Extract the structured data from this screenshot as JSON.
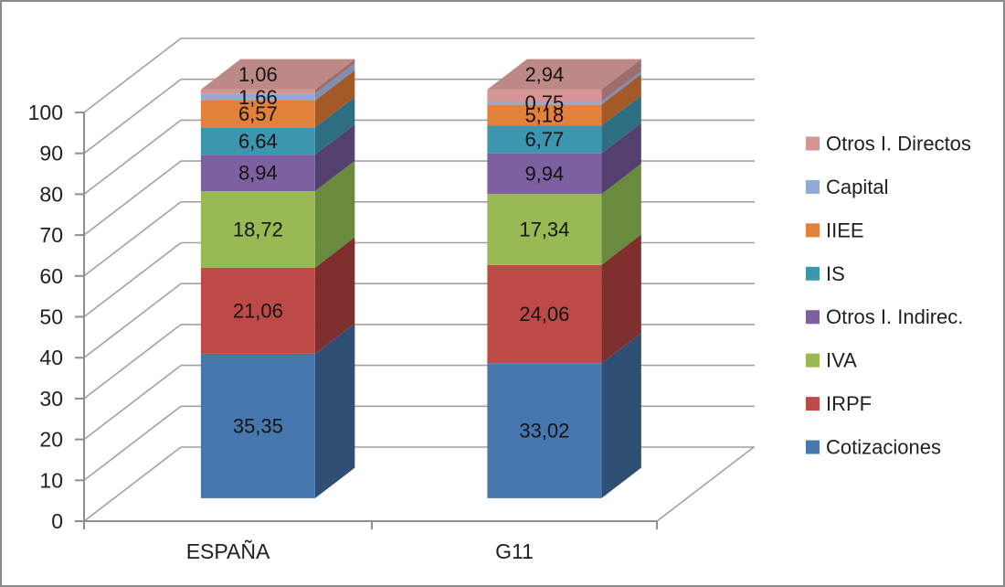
{
  "chart_data": {
    "type": "bar",
    "variant": "3d-stacked-column",
    "title": "",
    "categories": [
      "ESPAÑA",
      "G11"
    ],
    "series": [
      {
        "name": "Cotizaciones",
        "values": [
          35.35,
          33.02
        ],
        "labels": [
          "35,35",
          "33,02"
        ],
        "color": "#4677AE",
        "side": "#2E4E74"
      },
      {
        "name": "IRPF",
        "values": [
          21.06,
          24.06
        ],
        "labels": [
          "21,06",
          "24,06"
        ],
        "color": "#BE4A47",
        "side": "#7E2F2D"
      },
      {
        "name": "IVA",
        "values": [
          18.72,
          17.34
        ],
        "labels": [
          "18,72",
          "17,34"
        ],
        "color": "#98B954",
        "side": "#6A8B3E"
      },
      {
        "name": "Otros I. Indirec.",
        "values": [
          8.94,
          9.94
        ],
        "labels": [
          "8,94",
          "9,94"
        ],
        "color": "#7D60A0",
        "side": "#54406F"
      },
      {
        "name": "IS",
        "values": [
          6.64,
          6.77
        ],
        "labels": [
          "6,64",
          "6,77"
        ],
        "color": "#3D96AF",
        "side": "#2E6E82"
      },
      {
        "name": "IIEE",
        "values": [
          6.57,
          5.18
        ],
        "labels": [
          "6,57",
          "5,18"
        ],
        "color": "#E2813C",
        "side": "#A45A26"
      },
      {
        "name": "Capital",
        "values": [
          1.66,
          0.75
        ],
        "labels": [
          "1,66",
          "0,75"
        ],
        "color": "#93AAD4",
        "side": "#7C8FB5"
      },
      {
        "name": "Otros I. Directos",
        "values": [
          1.06,
          2.94
        ],
        "labels": [
          "1,06",
          "2,94"
        ],
        "color": "#D49593",
        "side": "#9E6E6D",
        "top": "#BC8987"
      }
    ],
    "legend": {
      "position": "right",
      "entries": [
        "Otros I. Directos",
        "Capital",
        "IIEE",
        "IS",
        "Otros I. Indirec.",
        "IVA",
        "IRPF",
        "Cotizaciones"
      ]
    },
    "y_axis": {
      "min": 0,
      "max": 100,
      "step": 10,
      "tick_labels": [
        "0",
        "10",
        "20",
        "30",
        "40",
        "50",
        "60",
        "70",
        "80",
        "90",
        "100"
      ]
    },
    "x_axis": {
      "tick_labels": [
        "ESPAÑA",
        "G11"
      ]
    },
    "grid": true,
    "colors": {
      "grid": "#A1A1A1",
      "axis": "#8F8F8F",
      "axis_text": "#1F1F1F",
      "data_label_text": "#141414",
      "legend_text": "#1F1F1F",
      "background": "#FFFFFF",
      "border": "#8A8A8A"
    }
  }
}
